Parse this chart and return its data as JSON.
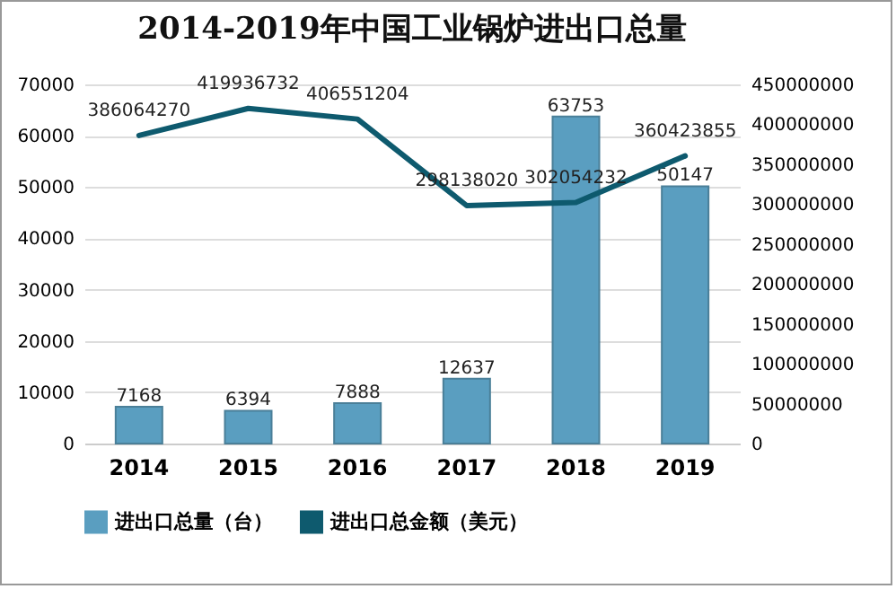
{
  "chart_data": {
    "type": "bar",
    "title": "2014-2019年中国工业锅炉进出口总量",
    "categories": [
      "2014",
      "2015",
      "2016",
      "2017",
      "2018",
      "2019"
    ],
    "series": [
      {
        "name": "进出口总量（台）",
        "color": "#5a9ec0",
        "values": [
          7168,
          6394,
          7888,
          12637,
          63753,
          50147
        ]
      },
      {
        "name": "进出口总金额（美元）",
        "type": "line",
        "axis": "y2",
        "color": "#0e5a6e",
        "values": [
          386064270,
          419936732,
          406551204,
          298138020,
          302054232,
          360423855
        ]
      }
    ],
    "ylim": [
      0,
      70000
    ],
    "yticks": [
      0,
      10000,
      20000,
      30000,
      40000,
      50000,
      60000,
      70000
    ],
    "y2lim": [
      0,
      450000000
    ],
    "y2ticks": [
      0,
      50000000,
      100000000,
      150000000,
      200000000,
      250000000,
      300000000,
      350000000,
      400000000,
      450000000
    ],
    "data_labels": true,
    "grid": "y",
    "legend": "bottom"
  }
}
